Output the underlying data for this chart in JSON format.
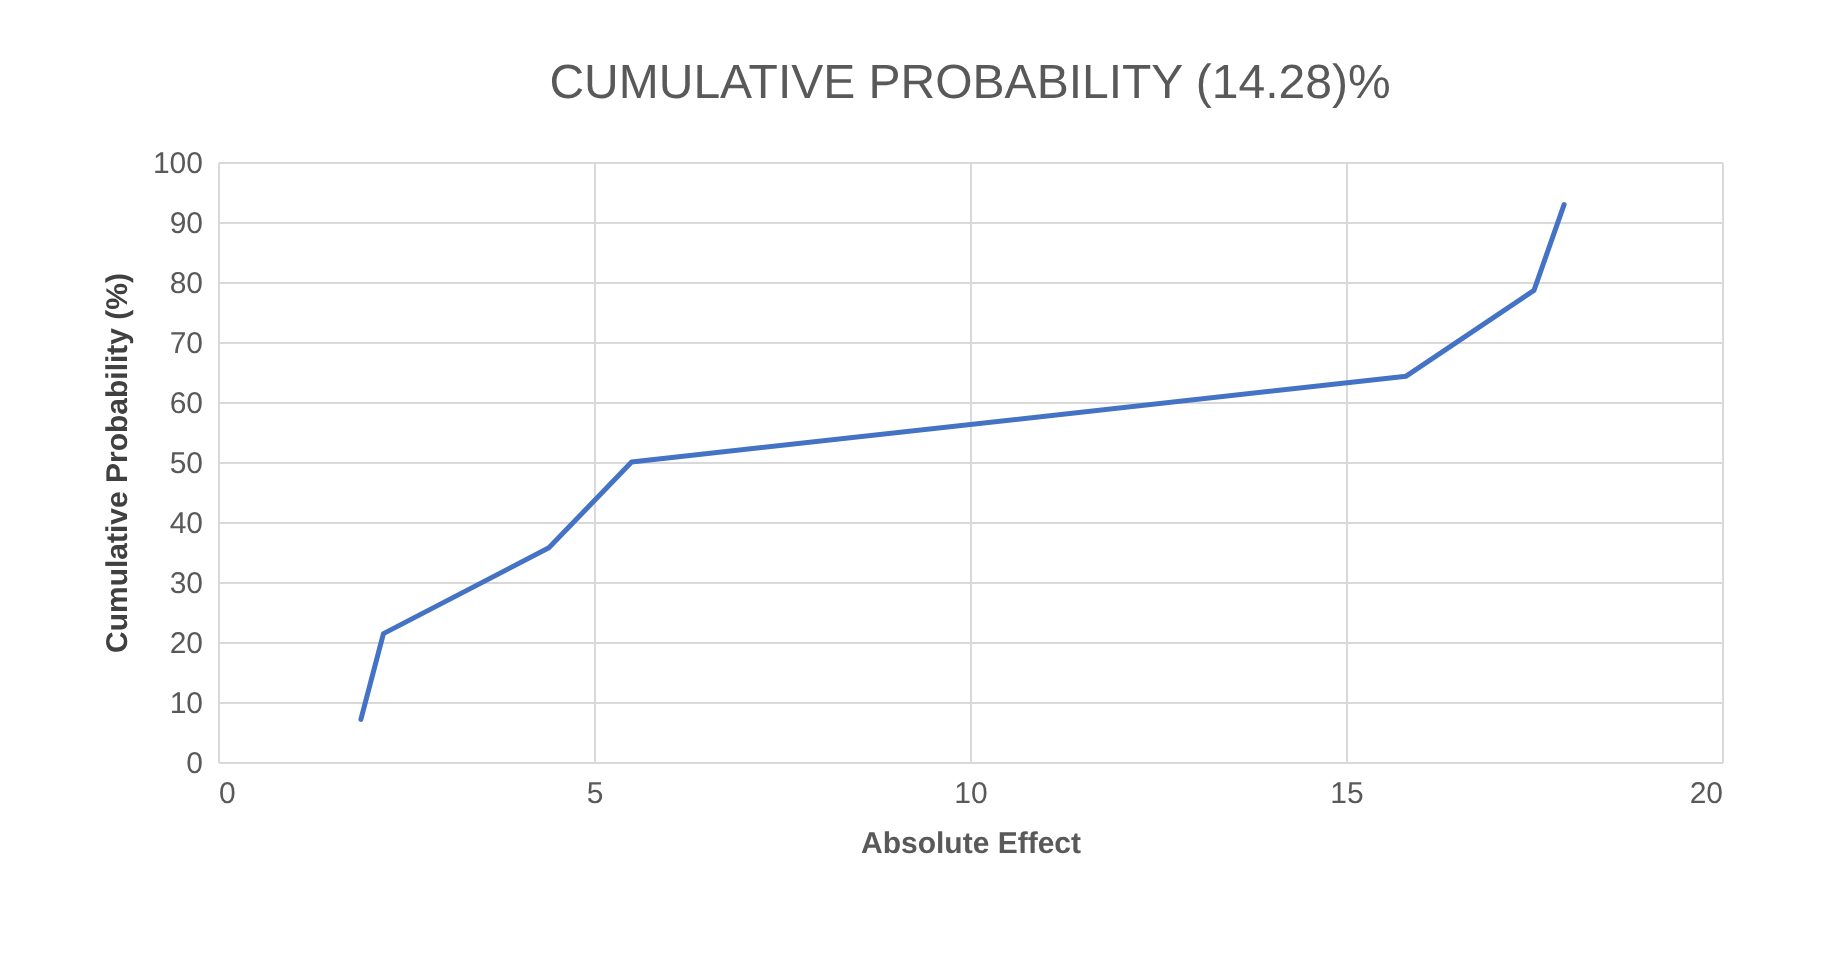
{
  "chart_data": {
    "type": "line",
    "title": "CUMULATIVE PROBABILITY (14.28)%",
    "xlabel": "Absolute Effect",
    "ylabel": "Cumulative Probability (%)",
    "x": [
      1.9,
      2.2,
      4.4,
      5.5,
      15.8,
      17.5,
      17.9
    ],
    "series": [
      {
        "color": "#4472c4",
        "values": [
          7.1,
          21.4,
          35.7,
          50.0,
          64.3,
          78.6,
          92.9
        ]
      }
    ],
    "xlim": [
      0,
      20
    ],
    "xticks": [
      0,
      5,
      10,
      15,
      20
    ],
    "ylim": [
      0,
      100
    ],
    "yticks": [
      0,
      10,
      20,
      30,
      40,
      50,
      60,
      70,
      80,
      90,
      100
    ],
    "grid": true,
    "marker": "none",
    "line_style": "solid"
  }
}
